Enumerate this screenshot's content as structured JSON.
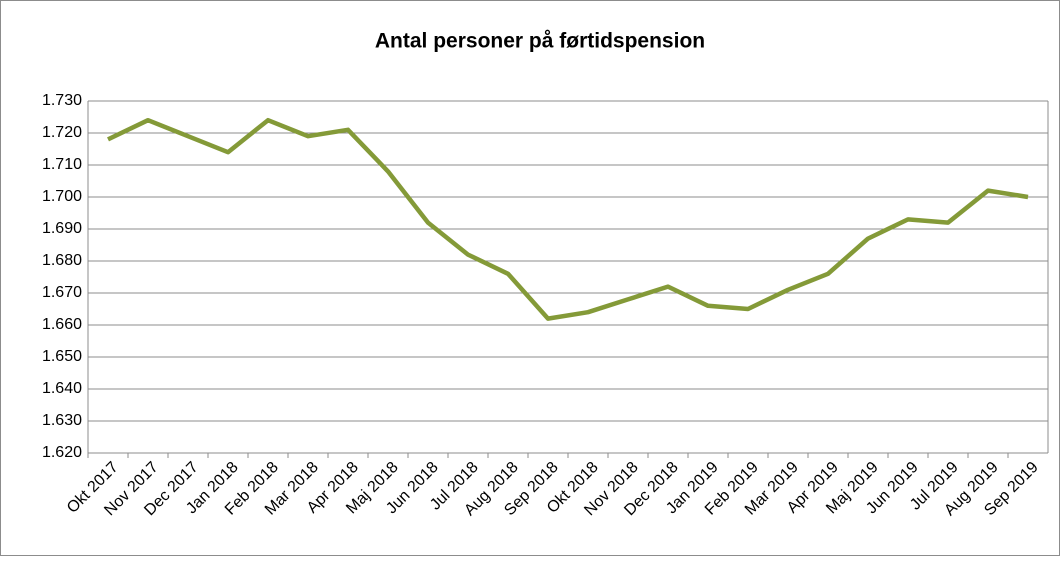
{
  "chart_data": {
    "type": "line",
    "title": "Antal personer på førtidspension",
    "categories": [
      "Okt 2017",
      "Nov 2017",
      "Dec 2017",
      "Jan 2018",
      "Feb 2018",
      "Mar 2018",
      "Apr 2018",
      "Maj 2018",
      "Jun 2018",
      "Jul 2018",
      "Aug 2018",
      "Sep 2018",
      "Okt 2018",
      "Nov 2018",
      "Dec 2018",
      "Jan 2019",
      "Feb 2019",
      "Mar 2019",
      "Apr 2019",
      "Maj 2019",
      "Jun 2019",
      "Jul 2019",
      "Aug 2019",
      "Sep 2019"
    ],
    "series": [
      {
        "color": "#849a38",
        "values": [
          1718,
          1724,
          1719,
          1714,
          1724,
          1719,
          1721,
          1708,
          1692,
          1682,
          1676,
          1662,
          1664,
          1668,
          1672,
          1666,
          1665,
          1671,
          1676,
          1687,
          1693,
          1692,
          1702,
          1700
        ]
      }
    ],
    "ylim": [
      1620,
      1730
    ],
    "yticks": [
      {
        "value": 1620,
        "label": "1.620"
      },
      {
        "value": 1630,
        "label": "1.630"
      },
      {
        "value": 1640,
        "label": "1.640"
      },
      {
        "value": 1650,
        "label": "1.650"
      },
      {
        "value": 1660,
        "label": "1.660"
      },
      {
        "value": 1670,
        "label": "1.670"
      },
      {
        "value": 1680,
        "label": "1.680"
      },
      {
        "value": 1690,
        "label": "1.690"
      },
      {
        "value": 1700,
        "label": "1.700"
      },
      {
        "value": 1710,
        "label": "1.710"
      },
      {
        "value": 1720,
        "label": "1.720"
      },
      {
        "value": 1730,
        "label": "1.730"
      }
    ],
    "grid": true
  }
}
